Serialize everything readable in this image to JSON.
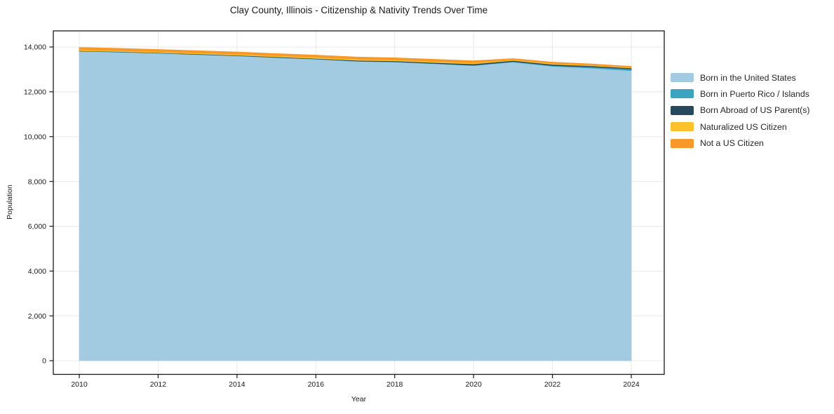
{
  "title": "Clay County, Illinois - Citizenship & Nativity Trends Over Time",
  "chart_data": {
    "type": "area",
    "stacked": true,
    "title": "Clay County, Illinois - Citizenship & Nativity Trends Over Time",
    "xlabel": "Year",
    "ylabel": "Population",
    "x": [
      2010,
      2011,
      2012,
      2013,
      2014,
      2015,
      2016,
      2017,
      2018,
      2019,
      2020,
      2021,
      2022,
      2023,
      2024
    ],
    "series": [
      {
        "name": "Born in the United States",
        "color": "#a2cbe2",
        "values": [
          13810,
          13772,
          13721,
          13662,
          13605,
          13528,
          13455,
          13365,
          13330,
          13255,
          13170,
          13328,
          13140,
          13058,
          12948
        ]
      },
      {
        "name": "Born in Puerto Rico / Islands",
        "color": "#3ba5c1",
        "values": [
          8,
          8,
          9,
          10,
          10,
          10,
          11,
          12,
          12,
          14,
          18,
          26,
          36,
          52,
          72
        ]
      },
      {
        "name": "Born Abroad of US Parent(s)",
        "color": "#26495e",
        "values": [
          14,
          15,
          17,
          18,
          20,
          22,
          25,
          30,
          34,
          40,
          58,
          46,
          50,
          46,
          40
        ]
      },
      {
        "name": "Naturalized US Citizen",
        "color": "#fcc12d",
        "values": [
          46,
          46,
          46,
          48,
          50,
          52,
          55,
          57,
          55,
          54,
          50,
          36,
          40,
          35,
          30
        ]
      },
      {
        "name": "Not a US Citizen",
        "color": "#f79828",
        "values": [
          104,
          100,
          96,
          95,
          95,
          94,
          93,
          90,
          86,
          89,
          90,
          46,
          60,
          50,
          46
        ]
      }
    ],
    "xticks": [
      2010,
      2012,
      2014,
      2016,
      2018,
      2020,
      2022,
      2024
    ],
    "yticks": [
      0,
      2000,
      4000,
      6000,
      8000,
      10000,
      12000,
      14000
    ],
    "ytick_labels": [
      "0",
      "2,000",
      "4,000",
      "6,000",
      "8,000",
      "10,000",
      "12,000",
      "14,000"
    ],
    "xlim": [
      2009.34,
      2024.84
    ],
    "ylim": [
      -600,
      14720
    ],
    "grid": true,
    "legend_position": "right",
    "colors": {
      "grid": "#e8e8e8",
      "frame": "#1a1a1a",
      "tick_label": "#1a1a1a"
    }
  }
}
